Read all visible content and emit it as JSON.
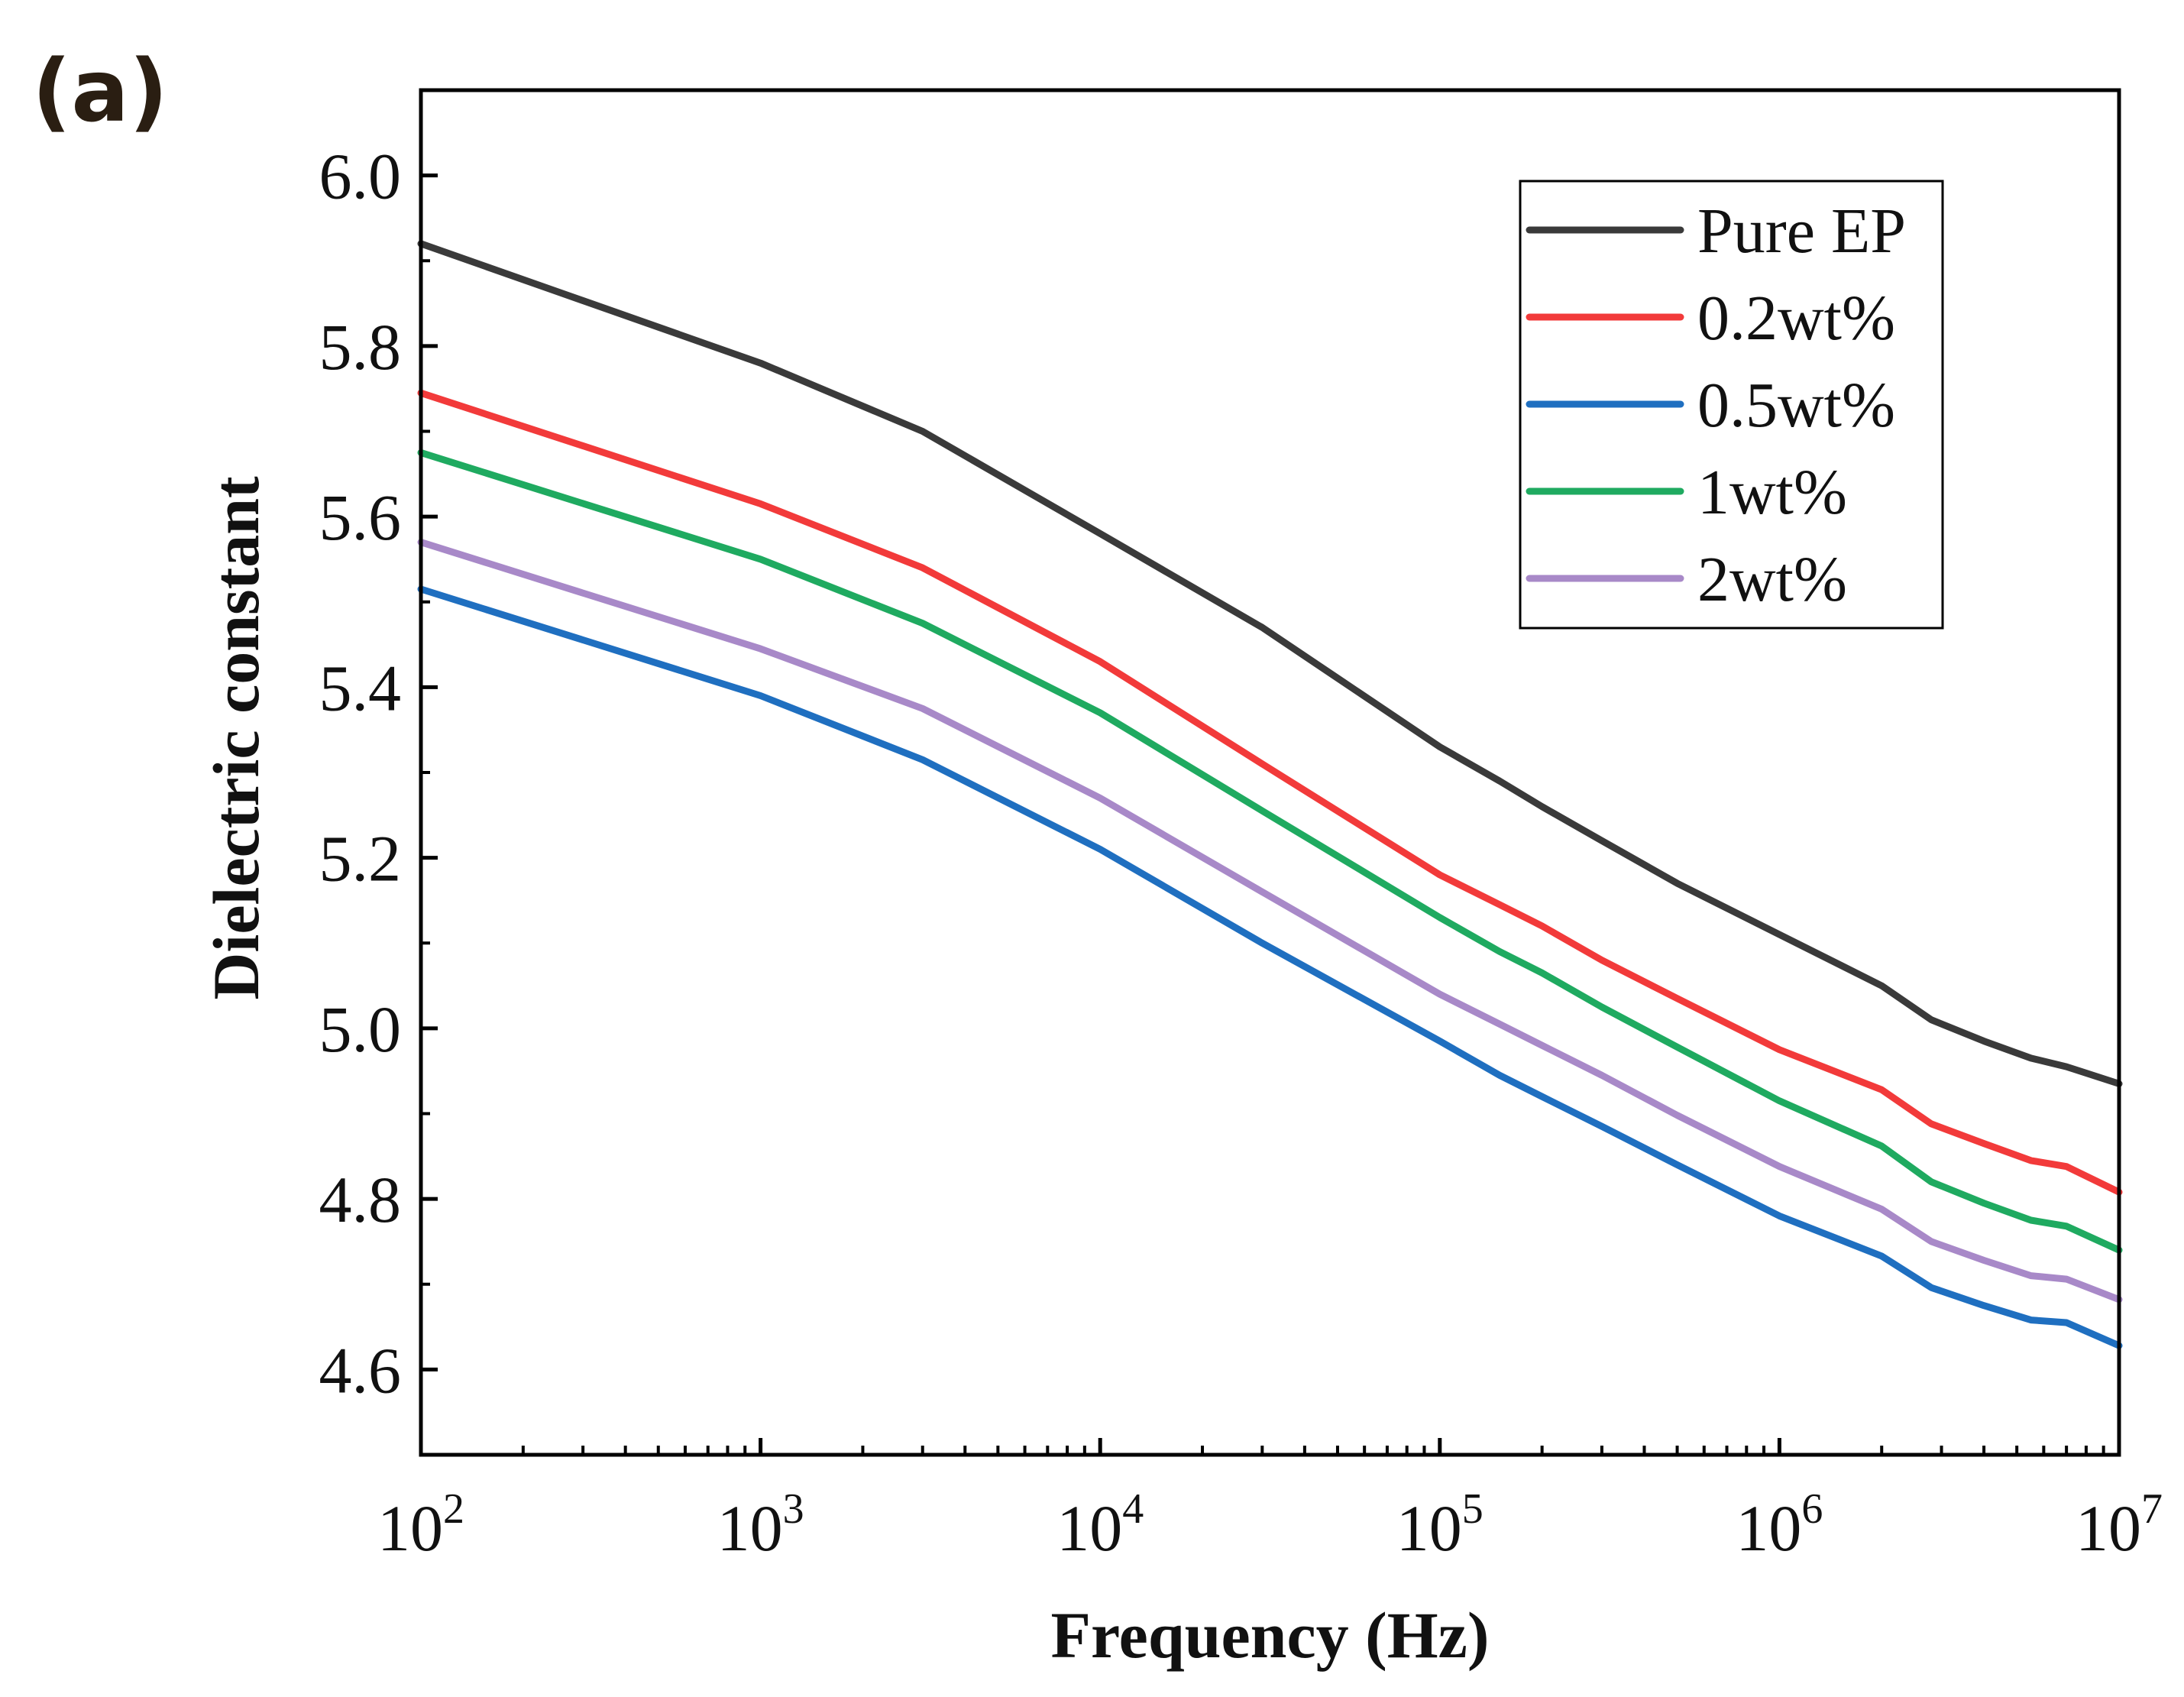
{
  "panel_label": "(a)",
  "chart_data": {
    "type": "line",
    "xscale": "log",
    "xlabel": "Frequency (Hz)",
    "ylabel": "Dielectric constant",
    "xlim": [
      100,
      10000000
    ],
    "ylim": [
      4.5,
      6.1
    ],
    "xticks": [
      {
        "value": 100,
        "base": "10",
        "exp": "2"
      },
      {
        "value": 1000,
        "base": "10",
        "exp": "3"
      },
      {
        "value": 10000,
        "base": "10",
        "exp": "4"
      },
      {
        "value": 100000,
        "base": "10",
        "exp": "5"
      },
      {
        "value": 1000000,
        "base": "10",
        "exp": "6"
      },
      {
        "value": 10000000,
        "base": "10",
        "exp": "7"
      }
    ],
    "yticks": [
      {
        "value": 4.6,
        "label": "4.6"
      },
      {
        "value": 4.8,
        "label": "4.8"
      },
      {
        "value": 5.0,
        "label": "5.0"
      },
      {
        "value": 5.2,
        "label": "5.2"
      },
      {
        "value": 5.4,
        "label": "5.4"
      },
      {
        "value": 5.6,
        "label": "5.6"
      },
      {
        "value": 5.8,
        "label": "5.8"
      },
      {
        "value": 6.0,
        "label": "6.0"
      }
    ],
    "grid": false,
    "legend_position": "top-right",
    "x": [
      100,
      1000,
      3000,
      10000,
      30000,
      100000,
      150000,
      200000,
      300000,
      500000,
      1000000,
      2000000,
      2800000,
      4000000,
      5500000,
      7000000,
      10000000
    ],
    "series": [
      {
        "name": "Pure EP",
        "color": "#3a3a3a",
        "values": [
          5.92,
          5.78,
          5.7,
          5.58,
          5.47,
          5.33,
          5.29,
          5.26,
          5.22,
          5.17,
          5.11,
          5.05,
          5.01,
          4.985,
          4.965,
          4.955,
          4.935
        ]
      },
      {
        "name": "0.2wt%",
        "color": "#f23a3a",
        "values": [
          5.745,
          5.615,
          5.54,
          5.43,
          5.31,
          5.18,
          5.145,
          5.12,
          5.08,
          5.035,
          4.975,
          4.928,
          4.888,
          4.865,
          4.845,
          4.838,
          4.808
        ]
      },
      {
        "name": "0.5wt%",
        "color": "#1f6fc0",
        "values": [
          5.515,
          5.39,
          5.315,
          5.21,
          5.1,
          4.985,
          4.945,
          4.92,
          4.885,
          4.84,
          4.78,
          4.733,
          4.696,
          4.675,
          4.658,
          4.655,
          4.628
        ]
      },
      {
        "name": "1wt%",
        "color": "#1faa60",
        "values": [
          5.675,
          5.55,
          5.475,
          5.37,
          5.255,
          5.13,
          5.09,
          5.065,
          5.025,
          4.978,
          4.915,
          4.862,
          4.82,
          4.795,
          4.775,
          4.768,
          4.74
        ]
      },
      {
        "name": "2wt%",
        "color": "#a889c8",
        "values": [
          5.57,
          5.445,
          5.375,
          5.27,
          5.16,
          5.04,
          5.005,
          4.98,
          4.945,
          4.898,
          4.838,
          4.788,
          4.75,
          4.728,
          4.71,
          4.706,
          4.682
        ]
      }
    ]
  }
}
